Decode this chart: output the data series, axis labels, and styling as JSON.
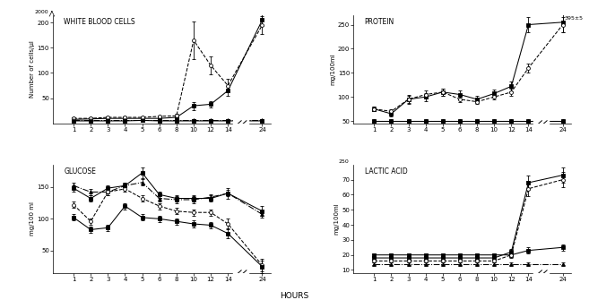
{
  "wbc": {
    "title": "WHITE BLOOD CELLS",
    "ylabel": "Number of cells/µl",
    "ylim": [
      0,
      215
    ],
    "yticks": [
      50,
      100,
      150,
      200
    ],
    "series": [
      {
        "x": [
          1,
          2,
          3,
          4,
          5,
          6,
          8,
          10,
          12,
          14,
          24
        ],
        "y": [
          5,
          5,
          5,
          5,
          6,
          5,
          5,
          5,
          5,
          5,
          5
        ],
        "yerr": [
          1,
          1,
          1,
          1,
          1,
          1,
          1,
          1,
          1,
          1,
          1
        ],
        "marker": "s",
        "linestyle": "-"
      },
      {
        "x": [
          1,
          2,
          3,
          4,
          5,
          6,
          8,
          10,
          12,
          14,
          24
        ],
        "y": [
          8,
          9,
          10,
          10,
          10,
          10,
          12,
          35,
          38,
          65,
          205
        ],
        "yerr": [
          2,
          2,
          2,
          2,
          2,
          2,
          3,
          8,
          6,
          10,
          12
        ],
        "marker": "s",
        "linestyle": "-"
      },
      {
        "x": [
          1,
          2,
          3,
          4,
          5,
          6,
          8,
          10,
          12,
          14,
          24
        ],
        "y": [
          10,
          10,
          12,
          12,
          12,
          14,
          15,
          165,
          115,
          75,
          195
        ],
        "yerr": [
          2,
          2,
          2,
          2,
          2,
          2,
          4,
          38,
          18,
          14,
          18
        ],
        "marker": "o",
        "linestyle": "--"
      },
      {
        "x": [
          1,
          2,
          3,
          4,
          5,
          6,
          8,
          10,
          12,
          14,
          24
        ],
        "y": [
          7,
          7,
          7,
          7,
          7,
          7,
          7,
          7,
          7,
          7,
          7
        ],
        "yerr": [
          1,
          1,
          1,
          1,
          1,
          1,
          1,
          1,
          1,
          1,
          1
        ],
        "marker": "^",
        "linestyle": "-."
      }
    ]
  },
  "protein": {
    "title": "PROTEIN",
    "ylabel": "mg/100ml",
    "ylim": [
      45,
      270
    ],
    "yticks": [
      50,
      100,
      150,
      200,
      250
    ],
    "annotation": "395±5",
    "series": [
      {
        "x": [
          1,
          2,
          3,
          4,
          5,
          6,
          8,
          10,
          12,
          14,
          24
        ],
        "y": [
          50,
          50,
          50,
          50,
          50,
          50,
          50,
          50,
          50,
          50,
          50
        ],
        "yerr": [
          2,
          2,
          2,
          2,
          2,
          2,
          2,
          2,
          2,
          2,
          2
        ],
        "marker": "s",
        "linestyle": "-"
      },
      {
        "x": [
          1,
          2,
          3,
          4,
          5,
          6,
          8,
          10,
          12,
          14,
          24
        ],
        "y": [
          75,
          65,
          95,
          100,
          110,
          105,
          95,
          107,
          122,
          250,
          255
        ],
        "yerr": [
          5,
          5,
          10,
          8,
          8,
          8,
          8,
          8,
          10,
          15,
          20
        ],
        "marker": "s",
        "linestyle": "-"
      },
      {
        "x": [
          1,
          2,
          3,
          4,
          5,
          6,
          8,
          10,
          12,
          14,
          24
        ],
        "y": [
          75,
          70,
          95,
          105,
          110,
          95,
          90,
          100,
          110,
          160,
          250
        ],
        "yerr": [
          5,
          5,
          8,
          8,
          8,
          5,
          5,
          5,
          8,
          10,
          15
        ],
        "marker": "o",
        "linestyle": "--"
      },
      {
        "x": [
          1,
          2,
          3,
          4,
          5,
          6,
          8,
          10,
          12,
          14,
          24
        ],
        "y": [
          50,
          50,
          50,
          50,
          50,
          50,
          50,
          50,
          50,
          50,
          50
        ],
        "yerr": [
          2,
          2,
          2,
          2,
          2,
          2,
          2,
          2,
          2,
          2,
          2
        ],
        "marker": "^",
        "linestyle": "-."
      }
    ]
  },
  "glucose": {
    "title": "GLUCOSE",
    "ylabel": "mg/100 ml",
    "ylim": [
      15,
      185
    ],
    "yticks": [
      50,
      100,
      150
    ],
    "series": [
      {
        "x": [
          1,
          2,
          3,
          4,
          5,
          6,
          8,
          10,
          12,
          14,
          24
        ],
        "y": [
          148,
          132,
          148,
          152,
          172,
          138,
          132,
          132,
          132,
          140,
          112
        ],
        "yerr": [
          5,
          5,
          5,
          5,
          8,
          5,
          5,
          5,
          5,
          8,
          8
        ],
        "marker": "s",
        "linestyle": "-"
      },
      {
        "x": [
          1,
          2,
          3,
          4,
          5,
          6,
          8,
          10,
          12,
          14,
          24
        ],
        "y": [
          152,
          142,
          142,
          152,
          157,
          132,
          130,
          130,
          134,
          140,
          107
        ],
        "yerr": [
          5,
          5,
          5,
          5,
          5,
          5,
          5,
          5,
          5,
          5,
          5
        ],
        "marker": "^",
        "linestyle": "-."
      },
      {
        "x": [
          1,
          2,
          3,
          4,
          5,
          6,
          8,
          10,
          12,
          14,
          24
        ],
        "y": [
          122,
          96,
          142,
          147,
          132,
          120,
          112,
          110,
          110,
          92,
          27
        ],
        "yerr": [
          5,
          5,
          5,
          5,
          5,
          5,
          5,
          5,
          5,
          8,
          10
        ],
        "marker": "o",
        "linestyle": "--"
      },
      {
        "x": [
          1,
          2,
          3,
          4,
          5,
          6,
          8,
          10,
          12,
          14,
          24
        ],
        "y": [
          102,
          83,
          86,
          120,
          102,
          100,
          96,
          92,
          90,
          77,
          25
        ],
        "yerr": [
          5,
          5,
          5,
          5,
          5,
          5,
          5,
          5,
          5,
          8,
          10
        ],
        "marker": "s",
        "linestyle": "-"
      }
    ]
  },
  "lactic": {
    "title": "LACTIC ACID",
    "ylabel": "mg/100ml",
    "ylim": [
      8,
      80
    ],
    "yticks": [
      10,
      20,
      30,
      40,
      50,
      60,
      70
    ],
    "series": [
      {
        "x": [
          1,
          2,
          3,
          4,
          5,
          6,
          8,
          10,
          12,
          14,
          24
        ],
        "y": [
          20,
          20,
          20,
          20,
          20,
          20,
          20,
          20,
          20,
          23,
          25
        ],
        "yerr": [
          1,
          1,
          1,
          1,
          1,
          1,
          1,
          1,
          1,
          2,
          2
        ],
        "marker": "s",
        "linestyle": "-"
      },
      {
        "x": [
          1,
          2,
          3,
          4,
          5,
          6,
          8,
          10,
          12,
          14,
          24
        ],
        "y": [
          18,
          18,
          18,
          18,
          18,
          18,
          18,
          18,
          22,
          68,
          73
        ],
        "yerr": [
          1,
          1,
          1,
          1,
          1,
          1,
          1,
          1,
          2,
          5,
          5
        ],
        "marker": "s",
        "linestyle": "-"
      },
      {
        "x": [
          1,
          2,
          3,
          4,
          5,
          6,
          8,
          10,
          12,
          14,
          24
        ],
        "y": [
          16,
          16,
          16,
          16,
          16,
          16,
          16,
          16,
          20,
          64,
          70
        ],
        "yerr": [
          1,
          1,
          1,
          1,
          1,
          1,
          1,
          1,
          2,
          5,
          5
        ],
        "marker": "o",
        "linestyle": "--"
      },
      {
        "x": [
          1,
          2,
          3,
          4,
          5,
          6,
          8,
          10,
          12,
          14,
          24
        ],
        "y": [
          14,
          14,
          14,
          14,
          14,
          14,
          14,
          14,
          14,
          14,
          14
        ],
        "yerr": [
          1,
          1,
          1,
          1,
          1,
          1,
          1,
          1,
          1,
          1,
          1
        ],
        "marker": "^",
        "linestyle": "-."
      }
    ]
  },
  "xlabel": "HOURS",
  "xtick_positions": [
    1,
    2,
    3,
    4,
    5,
    6,
    8,
    10,
    12,
    14,
    24
  ],
  "xtick_labels": [
    "1",
    "2",
    "3",
    "4",
    "5",
    "6",
    "8",
    "10",
    "12",
    "14",
    "24"
  ],
  "bg_color": "white",
  "markersize": 2.8,
  "linewidth": 0.75,
  "capsize": 1.5,
  "elinewidth": 0.6
}
